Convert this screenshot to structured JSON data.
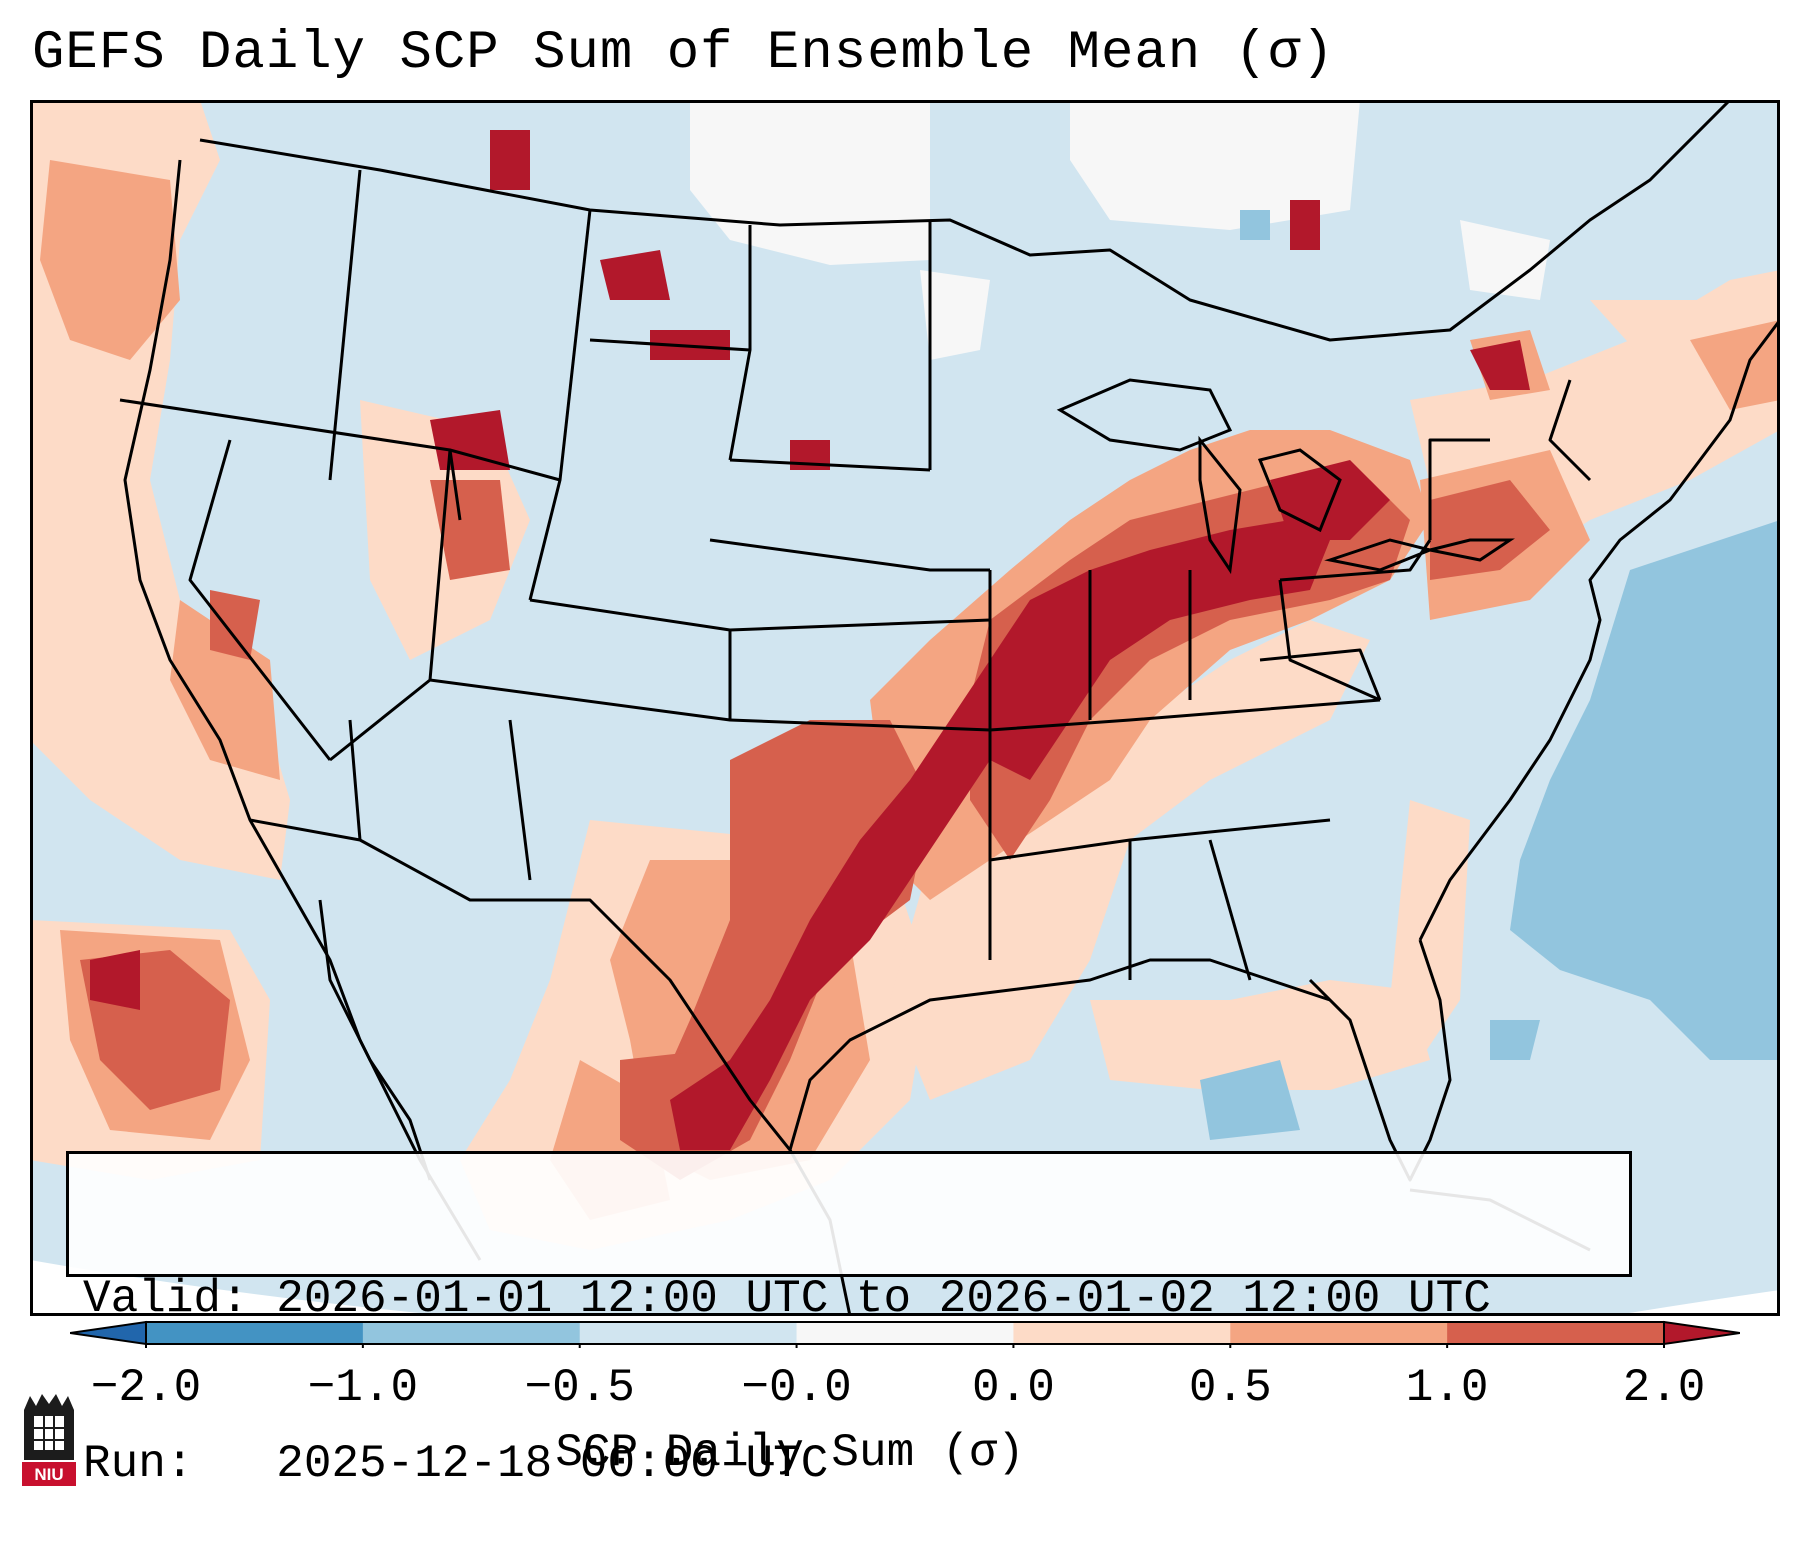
{
  "title": "GEFS Daily SCP Sum of Ensemble Mean (σ)",
  "info": {
    "valid": "Valid: 2026-01-01 12:00 UTC to 2026-01-02 12:00 UTC",
    "run": "Run:   2025-12-18 00:00 UTC"
  },
  "colorbar": {
    "label": "SCP Daily Sum (σ)",
    "ticks": [
      "−2.0",
      "−1.0",
      "−0.5",
      "−0.0",
      "0.0",
      "0.5",
      "1.0",
      "2.0"
    ],
    "bins": [
      {
        "range": "< -2.0",
        "color": "#2166ac"
      },
      {
        "range": "-2.0 to -1.0",
        "color": "#4393c3"
      },
      {
        "range": "-1.0 to -0.5",
        "color": "#92c5de"
      },
      {
        "range": "-0.5 to -0.0",
        "color": "#d1e5f0"
      },
      {
        "range": "-0.0 to 0.0",
        "color": "#f7f7f7"
      },
      {
        "range": "0.0 to 0.5",
        "color": "#fddbc7"
      },
      {
        "range": "0.5 to 1.0",
        "color": "#f4a582"
      },
      {
        "range": "1.0 to 2.0",
        "color": "#d6604d"
      },
      {
        "range": "> 2.0",
        "color": "#b2182b"
      }
    ]
  },
  "map": {
    "background_color": "#d1e5f0",
    "highlight_region": "Central and southern Plains through Ohio Valley",
    "max_anomaly_region": "Texas to Ohio Valley corridor"
  },
  "logo": {
    "text": "NIU",
    "color": "#c8102e"
  }
}
